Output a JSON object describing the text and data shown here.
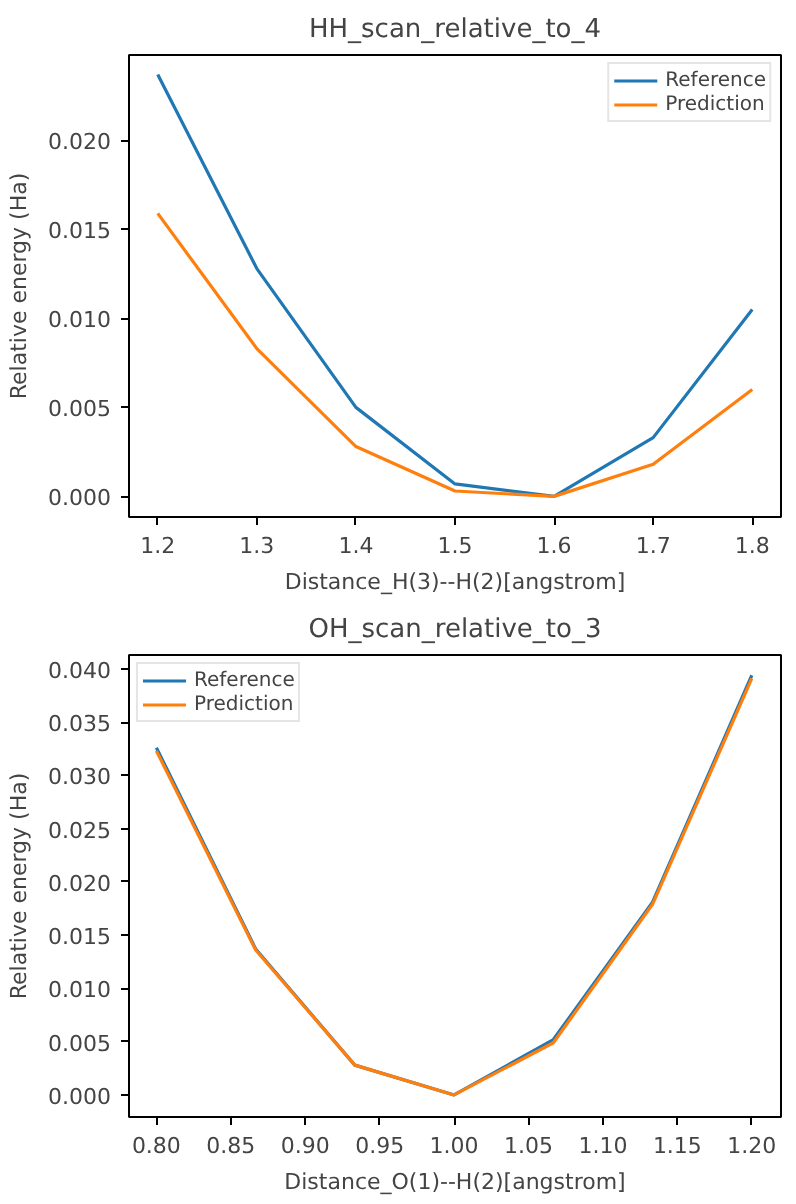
{
  "chart_data": [
    {
      "type": "line",
      "title": "HH_scan_relative_to_4",
      "xlabel": "Distance_H(3)--H(2)[angstrom]",
      "ylabel": "Relative energy (Ha)",
      "x": [
        1.2,
        1.3,
        1.4,
        1.5,
        1.6,
        1.7,
        1.8
      ],
      "series": [
        {
          "name": "Reference",
          "color": "#1f77b4",
          "values": [
            0.0237,
            0.0128,
            0.005,
            0.0007,
            0.0,
            0.0033,
            0.0105
          ]
        },
        {
          "name": "Prediction",
          "color": "#ff7f0e",
          "values": [
            0.0159,
            0.0083,
            0.0028,
            0.0003,
            0.0,
            0.0018,
            0.006
          ]
        }
      ],
      "xlim": [
        1.171,
        1.829
      ],
      "ylim": [
        -0.00116,
        0.0248
      ],
      "xticks": [
        1.2,
        1.3,
        1.4,
        1.5,
        1.6,
        1.7,
        1.8
      ],
      "yticks": [
        {
          "value": 0,
          "label": "0.000"
        },
        {
          "value": 0.005,
          "label": "0.005"
        },
        {
          "value": 0.01,
          "label": "0.010"
        },
        {
          "value": 0.015,
          "label": "0.015"
        },
        {
          "value": 0.02,
          "label": "0.020"
        }
      ],
      "grid": false,
      "legend": "top right"
    },
    {
      "type": "line",
      "title": "OH_scan_relative_to_3",
      "xlabel": "Distance_O(1)--H(2)[angstrom]",
      "ylabel": "Relative energy (Ha)",
      "x": [
        0.8,
        0.8667,
        0.9333,
        1.0,
        1.0667,
        1.1333,
        1.2
      ],
      "series": [
        {
          "name": "Reference",
          "color": "#1f77b4",
          "values": [
            0.0326,
            0.0137,
            0.0028,
            0.0,
            0.0052,
            0.0181,
            0.0394
          ]
        },
        {
          "name": "Prediction",
          "color": "#ff7f0e",
          "values": [
            0.0323,
            0.0136,
            0.0028,
            0.0,
            0.0049,
            0.0179,
            0.0391
          ]
        }
      ],
      "xlim": [
        0.7816,
        1.2196
      ],
      "ylim": [
        -0.00207,
        0.0413
      ],
      "xticks": [
        {
          "value": 0.8,
          "label": "0.80"
        },
        {
          "value": 0.85,
          "label": "0.85"
        },
        {
          "value": 0.9,
          "label": "0.90"
        },
        {
          "value": 0.95,
          "label": "0.95"
        },
        {
          "value": 1.0,
          "label": "1.00"
        },
        {
          "value": 1.05,
          "label": "1.05"
        },
        {
          "value": 1.1,
          "label": "1.10"
        },
        {
          "value": 1.15,
          "label": "1.15"
        },
        {
          "value": 1.2,
          "label": "1.20"
        }
      ],
      "yticks": [
        {
          "value": 0,
          "label": "0.000"
        },
        {
          "value": 0.005,
          "label": "0.005"
        },
        {
          "value": 0.01,
          "label": "0.010"
        },
        {
          "value": 0.015,
          "label": "0.015"
        },
        {
          "value": 0.02,
          "label": "0.020"
        },
        {
          "value": 0.025,
          "label": "0.025"
        },
        {
          "value": 0.03,
          "label": "0.030"
        },
        {
          "value": 0.035,
          "label": "0.035"
        },
        {
          "value": 0.04,
          "label": "0.040"
        }
      ],
      "grid": false,
      "legend": "top left"
    }
  ]
}
